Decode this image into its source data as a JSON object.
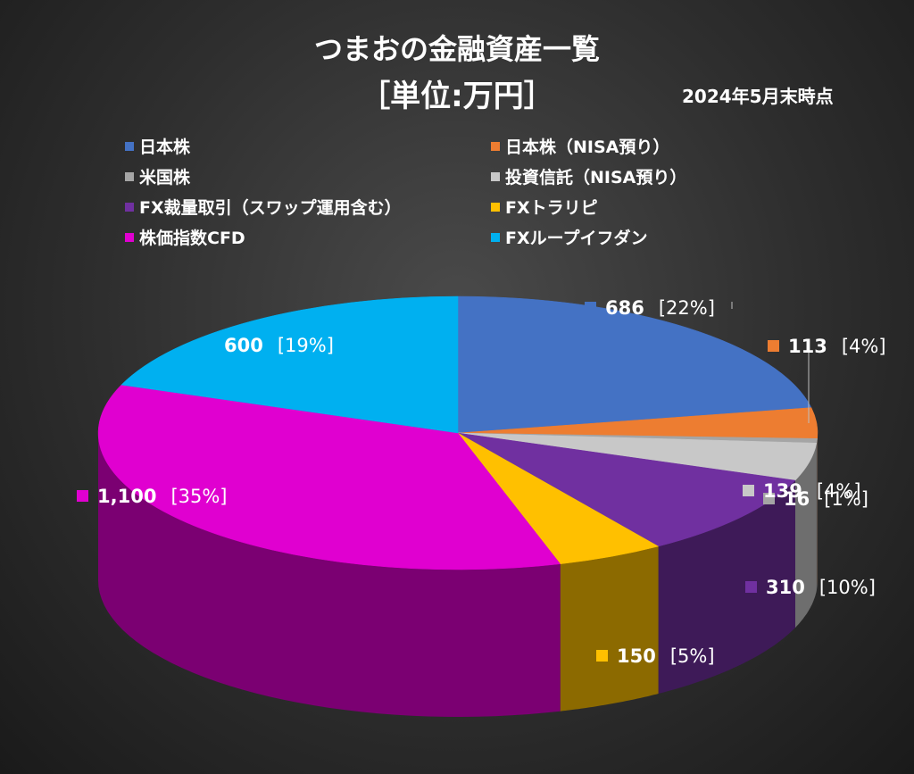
{
  "title_line1": "つまおの金融資産一覧",
  "title_line2": "［単位:万円］",
  "as_of": "2024年5月末時点",
  "chart_data": {
    "type": "pie",
    "title": "つまおの金融資産一覧",
    "subtitle": "［単位:万円］",
    "legend_position": "top",
    "slices": [
      {
        "name": "日本株",
        "value": 686,
        "value_label": "686",
        "percent_label": "[22%]",
        "color": "#4472C4"
      },
      {
        "name": "日本株（NISA預り）",
        "value": 113,
        "value_label": "113",
        "percent_label": "[4%]",
        "color": "#ED7D31"
      },
      {
        "name": "米国株",
        "value": 16,
        "value_label": "16",
        "percent_label": "[1%]",
        "color": "#A5A5A5"
      },
      {
        "name": "投資信託（NISA預り）",
        "value": 139,
        "value_label": "139",
        "percent_label": "[4%]",
        "color": "#C8C8C8"
      },
      {
        "name": "FX裁量取引（スワップ運用含む）",
        "value": 310,
        "value_label": "310",
        "percent_label": "[10%]",
        "color": "#7030A0"
      },
      {
        "name": "FXトラリピ",
        "value": 150,
        "value_label": "150",
        "percent_label": "[5%]",
        "color": "#FFC000"
      },
      {
        "name": "株価指数CFD",
        "value": 1100,
        "value_label": "1,100",
        "percent_label": "[35%]",
        "color": "#E000D0"
      },
      {
        "name": "FXループイフダン",
        "value": 600,
        "value_label": "600",
        "percent_label": "[19%]",
        "color": "#00B0F0"
      }
    ]
  }
}
